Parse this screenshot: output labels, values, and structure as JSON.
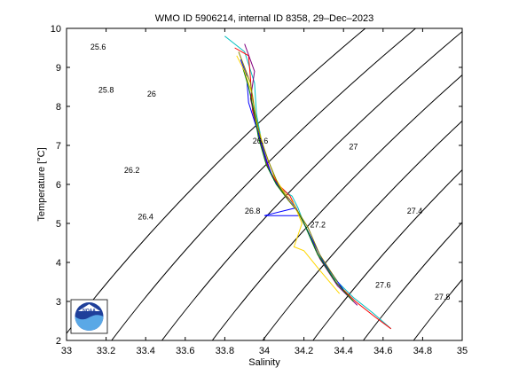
{
  "chart_data": {
    "type": "line",
    "title": "WMO ID 5906214, internal ID 8358, 29–Dec–2023",
    "xlabel": "Salinity",
    "ylabel": "Temperature [°C]",
    "xlim": [
      33,
      35
    ],
    "ylim": [
      2,
      10
    ],
    "xticks": [
      "33",
      "33.2",
      "33.4",
      "33.6",
      "33.8",
      "34",
      "34.2",
      "34.4",
      "34.6",
      "34.8",
      "35"
    ],
    "yticks": [
      "2",
      "3",
      "4",
      "5",
      "6",
      "7",
      "8",
      "9",
      "10"
    ],
    "grid": false,
    "density_contours": [
      {
        "label": "25.6",
        "pos": [
          33.16,
          9.45
        ]
      },
      {
        "label": "25.8",
        "pos": [
          33.2,
          8.35
        ]
      },
      {
        "label": "26",
        "pos": [
          33.43,
          8.25
        ]
      },
      {
        "label": "26.2",
        "pos": [
          33.33,
          6.3
        ]
      },
      {
        "label": "26.4",
        "pos": [
          33.4,
          5.1
        ]
      },
      {
        "label": "26.6",
        "pos": [
          33.98,
          7.05
        ]
      },
      {
        "label": "26.8",
        "pos": [
          33.94,
          5.25
        ]
      },
      {
        "label": "27",
        "pos": [
          34.45,
          6.9
        ]
      },
      {
        "label": "27.2",
        "pos": [
          34.27,
          4.9
        ]
      },
      {
        "label": "27.4",
        "pos": [
          34.76,
          5.25
        ]
      },
      {
        "label": "27.6",
        "pos": [
          34.6,
          3.35
        ]
      },
      {
        "label": "27.8",
        "pos": [
          34.9,
          3.05
        ]
      }
    ],
    "series": [
      {
        "color": "#00bfbf",
        "x": [
          33.8,
          33.9,
          33.95,
          33.96,
          33.99,
          34.03,
          34.08,
          34.14,
          34.17,
          34.2,
          34.26,
          34.35,
          34.45,
          34.55,
          34.64
        ],
        "y": [
          9.8,
          9.4,
          8.6,
          7.8,
          7.0,
          6.3,
          5.9,
          5.7,
          5.4,
          5.0,
          4.3,
          3.6,
          3.1,
          2.7,
          2.3
        ]
      },
      {
        "color": "#ff0000",
        "x": [
          33.85,
          33.92,
          33.93,
          33.94,
          33.98,
          34.02,
          34.07,
          34.13,
          34.17,
          34.21,
          34.27,
          34.36,
          34.46,
          34.56,
          34.64
        ],
        "y": [
          9.5,
          9.3,
          8.7,
          7.9,
          7.1,
          6.4,
          6.0,
          5.7,
          5.3,
          4.9,
          4.2,
          3.5,
          3.0,
          2.6,
          2.3
        ]
      },
      {
        "color": "#800080",
        "x": [
          33.9,
          33.95,
          33.93,
          33.96,
          34.0,
          34.04,
          34.09,
          34.15,
          34.18,
          34.22,
          34.28,
          34.37,
          34.47
        ],
        "y": [
          9.6,
          8.9,
          8.2,
          7.5,
          6.8,
          6.2,
          5.8,
          5.5,
          5.2,
          4.8,
          4.1,
          3.4,
          2.9
        ]
      },
      {
        "color": "#0000ff",
        "x": [
          33.88,
          33.91,
          33.92,
          33.97,
          34.01,
          34.05,
          34.1,
          34.16,
          34.0,
          34.18,
          34.23,
          34.3,
          34.4
        ],
        "y": [
          9.2,
          8.8,
          8.1,
          7.3,
          6.6,
          6.1,
          5.8,
          5.4,
          5.2,
          5.2,
          4.7,
          4.0,
          3.3
        ]
      },
      {
        "color": "#008000",
        "x": [
          33.89,
          33.92,
          33.95,
          33.97,
          34.01,
          34.06,
          34.12,
          34.17,
          34.21,
          34.27,
          34.36,
          34.45
        ],
        "y": [
          9.0,
          8.5,
          7.8,
          7.2,
          6.5,
          6.0,
          5.6,
          5.3,
          4.9,
          4.2,
          3.5,
          3.0
        ]
      },
      {
        "color": "#ffd700",
        "x": [
          33.86,
          33.9,
          33.94,
          33.96,
          34.0,
          34.05,
          34.1,
          34.15,
          34.19,
          34.15,
          34.2,
          34.28,
          34.38
        ],
        "y": [
          9.3,
          8.9,
          8.3,
          7.6,
          6.9,
          6.2,
          5.8,
          5.5,
          5.0,
          4.4,
          4.3,
          3.8,
          3.2
        ]
      },
      {
        "color": "#808000",
        "x": [
          33.87,
          33.93,
          33.95,
          33.98,
          34.02,
          34.07,
          34.12,
          34.17,
          34.22,
          34.28,
          34.37
        ],
        "y": [
          9.4,
          8.6,
          7.9,
          7.2,
          6.6,
          6.0,
          5.6,
          5.3,
          4.9,
          4.2,
          3.5
        ]
      }
    ]
  }
}
